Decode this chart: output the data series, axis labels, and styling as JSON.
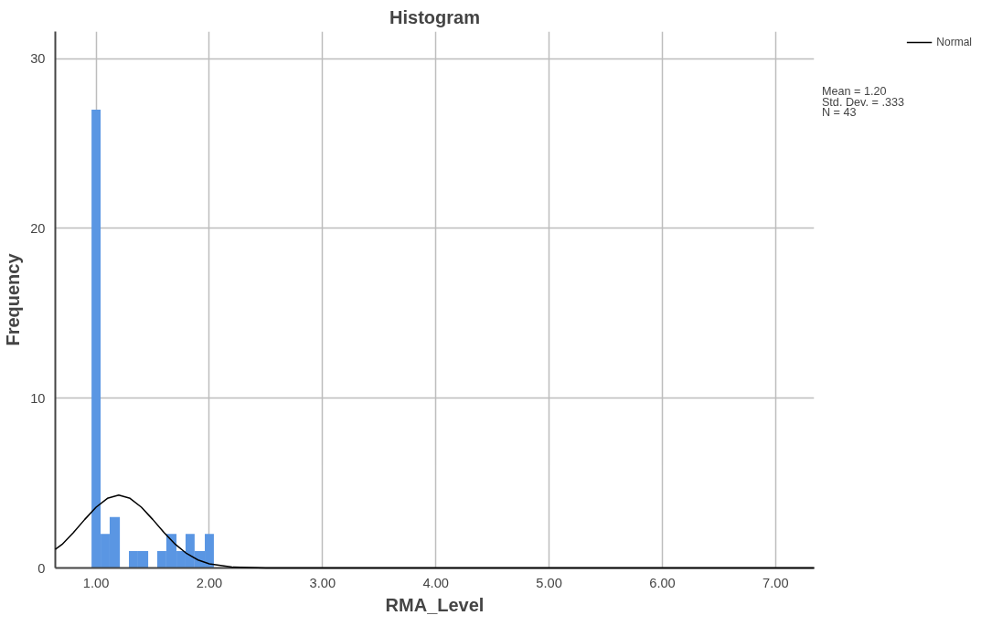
{
  "chart_data": {
    "type": "histogram",
    "title": "Histogram",
    "xlabel": "RMA_Level",
    "ylabel": "Frequency",
    "bins": [
      0.96,
      1.04,
      1.12,
      1.21,
      1.29,
      1.37,
      1.46,
      1.54,
      1.62,
      1.71,
      1.79,
      1.87,
      1.96,
      2.04
    ],
    "values": [
      27,
      2,
      3,
      0,
      1,
      1,
      0,
      1,
      2,
      1,
      2,
      1,
      2
    ],
    "color": "#5a96e3",
    "series": [
      {
        "name": "Normal",
        "type": "line",
        "color": "#000000",
        "x": [
          0.64,
          0.7,
          0.8,
          0.9,
          1.0,
          1.1,
          1.2,
          1.3,
          1.4,
          1.5,
          1.6,
          1.7,
          1.8,
          1.9,
          2.0,
          2.2,
          2.5,
          3.0,
          5.0,
          7.34
        ],
        "values": [
          1.1,
          1.39,
          2.09,
          2.86,
          3.58,
          4.1,
          4.29,
          4.1,
          3.58,
          2.86,
          2.09,
          1.39,
          0.85,
          0.47,
          0.24,
          0.05,
          0,
          0,
          0,
          0
        ]
      }
    ],
    "xlim": [
      0.64,
      7.34
    ],
    "ylim": [
      0,
      31.6
    ],
    "xticks": [
      {
        "value": 1,
        "label": "1.00"
      },
      {
        "value": 2,
        "label": "2.00"
      },
      {
        "value": 3,
        "label": "3.00"
      },
      {
        "value": 4,
        "label": "4.00"
      },
      {
        "value": 5,
        "label": "5.00"
      },
      {
        "value": 6,
        "label": "6.00"
      },
      {
        "value": 7,
        "label": "7.00"
      }
    ],
    "yticks": [
      0,
      10,
      20,
      30
    ],
    "grid": true,
    "legend": "top right",
    "annotations": [
      "Mean = 1.20",
      "Std. Dev. = .333",
      "N = 43"
    ]
  }
}
